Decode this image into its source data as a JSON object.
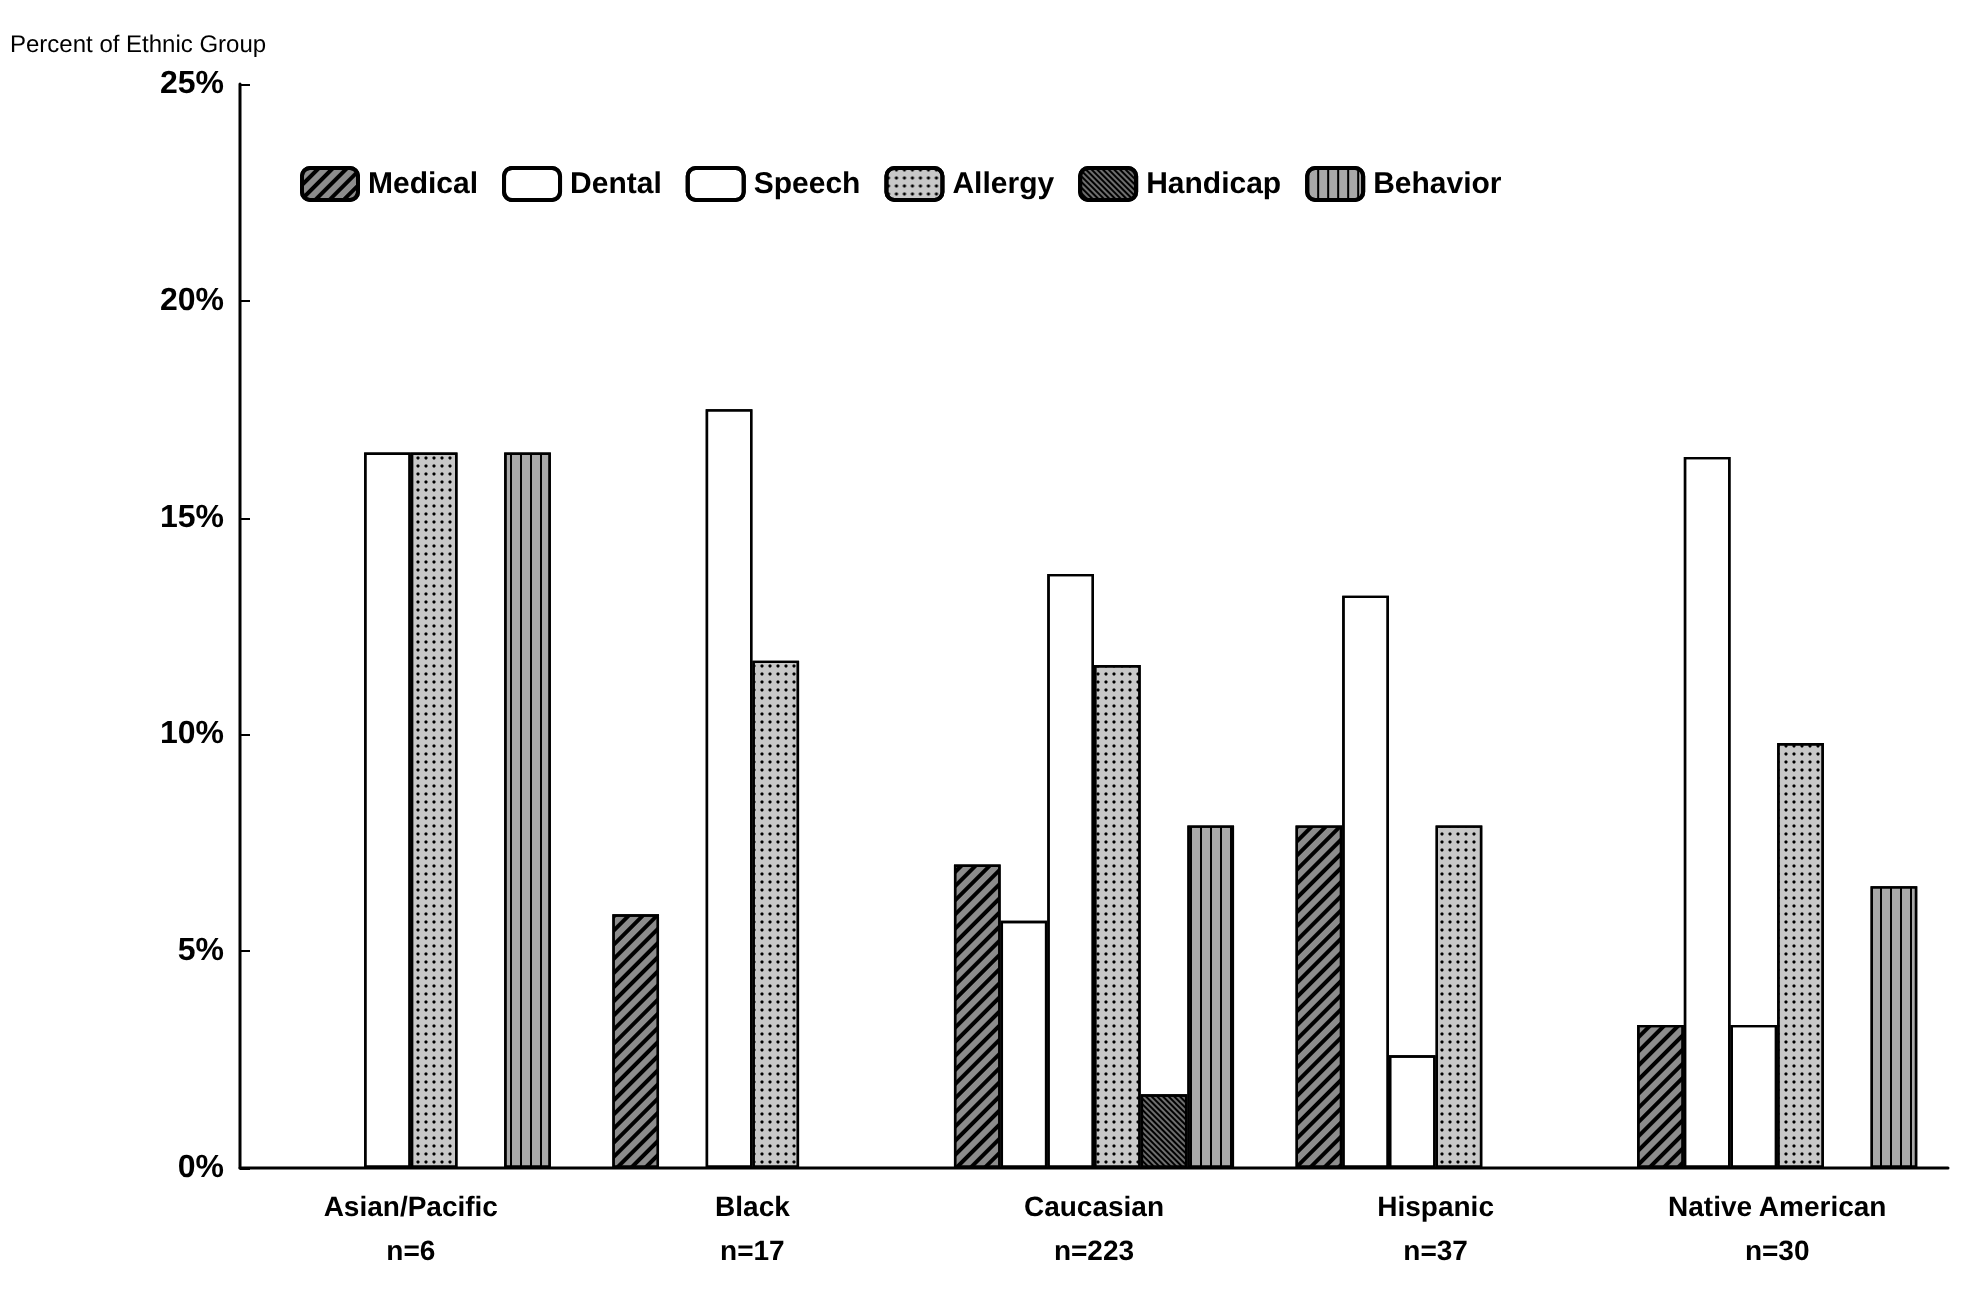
{
  "chart_data": {
    "type": "bar",
    "ylabel": "Percent of Ethnic Group",
    "categories": [
      "Asian/Pacific\nn=6",
      "Black\nn=17",
      "Caucasian\nn=223",
      "Hispanic\nn=37",
      "Native American\nn=30"
    ],
    "series": [
      {
        "name": "Medical",
        "color": "#8c8c8c",
        "values": [
          0,
          5.85,
          7.0,
          7.9,
          3.3
        ]
      },
      {
        "name": "Dental",
        "color": "#ffffff",
        "values": [
          0,
          0,
          5.7,
          13.2,
          16.4
        ]
      },
      {
        "name": "Speech",
        "color": "#ffffff",
        "values": [
          16.5,
          17.5,
          13.7,
          2.6,
          3.3
        ]
      },
      {
        "name": "Allergy",
        "color": "#c8c8c8",
        "values": [
          16.5,
          11.7,
          11.6,
          7.9,
          9.8
        ]
      },
      {
        "name": "Handicap",
        "color": "#6e6e6e",
        "values": [
          0,
          0,
          1.7,
          0,
          0
        ]
      },
      {
        "name": "Behavior",
        "color": "#a8a8a8",
        "values": [
          16.5,
          0,
          7.9,
          0,
          6.5
        ]
      }
    ],
    "ylim": [
      0,
      25
    ],
    "yticks": [
      {
        "value": 0,
        "label": "0%"
      },
      {
        "value": 5,
        "label": "5%"
      },
      {
        "value": 10,
        "label": "10%"
      },
      {
        "value": 15,
        "label": "15%"
      },
      {
        "value": 20,
        "label": "20%"
      },
      {
        "value": 25,
        "label": "25%"
      }
    ],
    "grid": false,
    "legend": "top"
  }
}
